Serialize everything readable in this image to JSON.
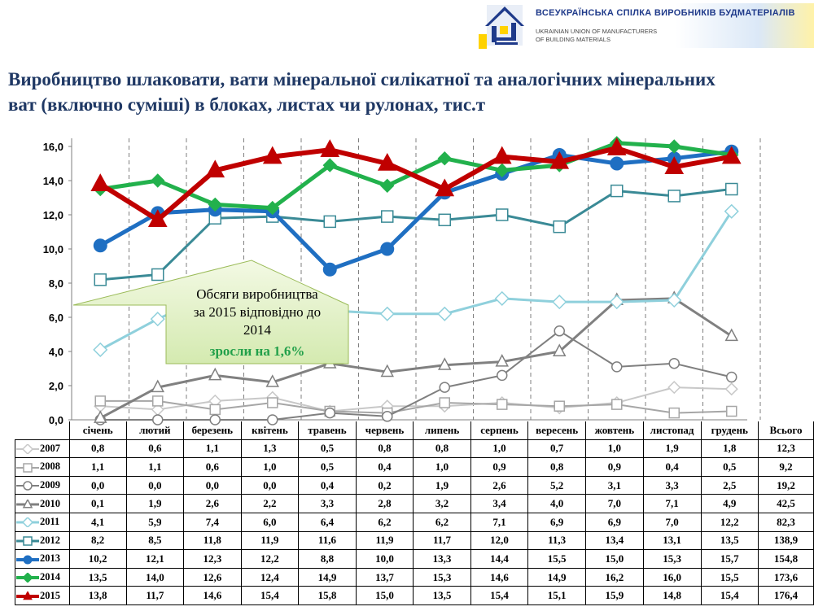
{
  "header": {
    "org_name_ua": "ВСЕУКРАЇНСЬКА СПІЛКА ВИРОБНИКІВ БУДМАТЕРІАЛІВ",
    "org_name_en_line1": "UKRAINIAN UNION OF MANUFACTURERS",
    "org_name_en_line2": "OF BUILDING MATERIALS"
  },
  "title": "Виробництво шлаковати, вати  мінеральної силікатної та аналогічних мінеральних ват (включно суміші) в блоках, листах чи рулонах, тис.т",
  "callout": {
    "line1": "Обсяги виробництва",
    "line2": "за 2015 відповідно до",
    "line3": "2014",
    "line4": "зросли на 1,6%"
  },
  "chart_data": {
    "type": "line",
    "categories": [
      "січень",
      "лютий",
      "березень",
      "квітень",
      "травень",
      "червень",
      "липень",
      "серпень",
      "вересень",
      "жовтень",
      "листопад",
      "грудень"
    ],
    "total_label": "Всього",
    "ylim": [
      0,
      16
    ],
    "yticks": [
      "0,0",
      "2,0",
      "4,0",
      "6,0",
      "8,0",
      "10,0",
      "12,0",
      "14,0",
      "16,0"
    ],
    "grid": "vertical dashed",
    "series": [
      {
        "name": "2007",
        "color": "#c8c8c8",
        "marker": "diamond-open",
        "values": [
          0.8,
          0.6,
          1.1,
          1.3,
          0.5,
          0.8,
          0.8,
          1.0,
          0.7,
          1.0,
          1.9,
          1.8
        ],
        "labels": [
          "0,8",
          "0,6",
          "1,1",
          "1,3",
          "0,5",
          "0,8",
          "0,8",
          "1,0",
          "0,7",
          "1,0",
          "1,9",
          "1,8"
        ],
        "total": "12,3"
      },
      {
        "name": "2008",
        "color": "#a6a6a6",
        "marker": "square-open",
        "values": [
          1.1,
          1.1,
          0.6,
          1.0,
          0.5,
          0.4,
          1.0,
          0.9,
          0.8,
          0.9,
          0.4,
          0.5
        ],
        "labels": [
          "1,1",
          "1,1",
          "0,6",
          "1,0",
          "0,5",
          "0,4",
          "1,0",
          "0,9",
          "0,8",
          "0,9",
          "0,4",
          "0,5"
        ],
        "total": "9,2"
      },
      {
        "name": "2009",
        "color": "#7f7f7f",
        "marker": "circle-open",
        "values": [
          0.0,
          0.0,
          0.0,
          0.0,
          0.4,
          0.2,
          1.9,
          2.6,
          5.2,
          3.1,
          3.3,
          2.5
        ],
        "labels": [
          "0,0",
          "0,0",
          "0,0",
          "0,0",
          "0,4",
          "0,2",
          "1,9",
          "2,6",
          "5,2",
          "3,1",
          "3,3",
          "2,5"
        ],
        "total": "19,2"
      },
      {
        "name": "2010",
        "color": "#808080",
        "marker": "triangle-open",
        "values": [
          0.1,
          1.9,
          2.6,
          2.2,
          3.3,
          2.8,
          3.2,
          3.4,
          4.0,
          7.0,
          7.1,
          4.9
        ],
        "labels": [
          "0,1",
          "1,9",
          "2,6",
          "2,2",
          "3,3",
          "2,8",
          "3,2",
          "3,4",
          "4,0",
          "7,0",
          "7,1",
          "4,9"
        ],
        "total": "42,5"
      },
      {
        "name": "2011",
        "color": "#8fd0dc",
        "marker": "diamond-open",
        "values": [
          4.1,
          5.9,
          7.4,
          6.0,
          6.4,
          6.2,
          6.2,
          7.1,
          6.9,
          6.9,
          7.0,
          12.2
        ],
        "labels": [
          "4,1",
          "5,9",
          "7,4",
          "6,0",
          "6,4",
          "6,2",
          "6,2",
          "7,1",
          "6,9",
          "6,9",
          "7,0",
          "12,2"
        ],
        "total": "82,3"
      },
      {
        "name": "2012",
        "color": "#3a8a96",
        "marker": "square-open",
        "values": [
          8.2,
          8.5,
          11.8,
          11.9,
          11.6,
          11.9,
          11.7,
          12.0,
          11.3,
          13.4,
          13.1,
          13.5
        ],
        "labels": [
          "8,2",
          "8,5",
          "11,8",
          "11,9",
          "11,6",
          "11,9",
          "11,7",
          "12,0",
          "11,3",
          "13,4",
          "13,1",
          "13,5"
        ],
        "total": "138,9"
      },
      {
        "name": "2013",
        "color": "#1f6fc2",
        "marker": "circle",
        "values": [
          10.2,
          12.1,
          12.3,
          12.2,
          8.8,
          10.0,
          13.3,
          14.4,
          15.5,
          15.0,
          15.3,
          15.7
        ],
        "labels": [
          "10,2",
          "12,1",
          "12,3",
          "12,2",
          "8,8",
          "10,0",
          "13,3",
          "14,4",
          "15,5",
          "15,0",
          "15,3",
          "15,7"
        ],
        "total": "154,8"
      },
      {
        "name": "2014",
        "color": "#22b14c",
        "marker": "diamond",
        "values": [
          13.5,
          14.0,
          12.6,
          12.4,
          14.9,
          13.7,
          15.3,
          14.6,
          14.9,
          16.2,
          16.0,
          15.5
        ],
        "labels": [
          "13,5",
          "14,0",
          "12,6",
          "12,4",
          "14,9",
          "13,7",
          "15,3",
          "14,6",
          "14,9",
          "16,2",
          "16,0",
          "15,5"
        ],
        "total": "173,6"
      },
      {
        "name": "2015",
        "color": "#c00000",
        "marker": "triangle",
        "values": [
          13.8,
          11.7,
          14.6,
          15.4,
          15.8,
          15.0,
          13.5,
          15.4,
          15.1,
          15.9,
          14.8,
          15.4
        ],
        "labels": [
          "13,8",
          "11,7",
          "14,6",
          "15,4",
          "15,8",
          "15,0",
          "13,5",
          "15,4",
          "15,1",
          "15,9",
          "14,8",
          "15,4"
        ],
        "total": "176,4"
      }
    ]
  }
}
